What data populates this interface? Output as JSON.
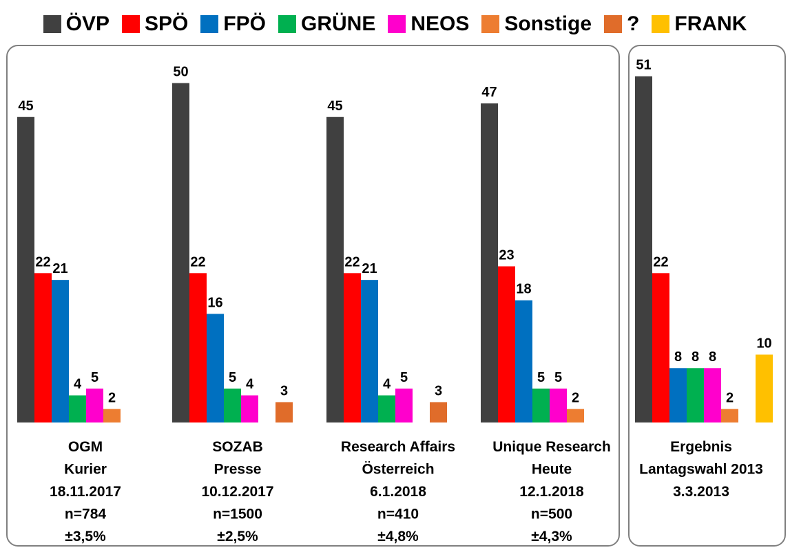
{
  "chart_data": {
    "type": "bar",
    "title": "",
    "xlabel": "",
    "ylabel": "",
    "ylim": [
      0,
      51
    ],
    "grid": false,
    "legend_position": "top",
    "series": [
      {
        "name": "ÖVP",
        "color": "#404040"
      },
      {
        "name": "SPÖ",
        "color": "#ff0000"
      },
      {
        "name": "FPÖ",
        "color": "#0070c0"
      },
      {
        "name": "GRÜNE",
        "color": "#00b050"
      },
      {
        "name": "NEOS",
        "color": "#ff00cc"
      },
      {
        "name": "Sonstige",
        "color": "#ed7d31"
      },
      {
        "name": "?",
        "color": "#e06c2a"
      },
      {
        "name": "FRANK",
        "color": "#ffc000"
      }
    ],
    "groups": [
      {
        "panel": 0,
        "label_lines": [
          "OGM",
          "Kurier",
          "18.11.2017",
          "n=784",
          "±3,5%"
        ],
        "values": [
          45,
          22,
          21,
          4,
          5,
          2,
          null,
          null
        ]
      },
      {
        "panel": 0,
        "label_lines": [
          "SOZAB",
          "Presse",
          "10.12.2017",
          "n=1500",
          "±2,5%"
        ],
        "values": [
          50,
          22,
          16,
          5,
          4,
          null,
          3,
          null
        ]
      },
      {
        "panel": 0,
        "label_lines": [
          "Research Affairs",
          "Österreich",
          "6.1.2018",
          "n=410",
          "±4,8%"
        ],
        "values": [
          45,
          22,
          21,
          4,
          5,
          null,
          3,
          null
        ]
      },
      {
        "panel": 0,
        "label_lines": [
          "Unique Research",
          "Heute",
          "12.1.2018",
          "n=500",
          "±4,3%"
        ],
        "values": [
          47,
          23,
          18,
          5,
          5,
          2,
          null,
          null
        ]
      },
      {
        "panel": 1,
        "label_lines": [
          "Ergebnis",
          "Lantagswahl 2013",
          "3.3.2013"
        ],
        "values": [
          51,
          22,
          8,
          8,
          8,
          2,
          null,
          10
        ]
      }
    ]
  }
}
